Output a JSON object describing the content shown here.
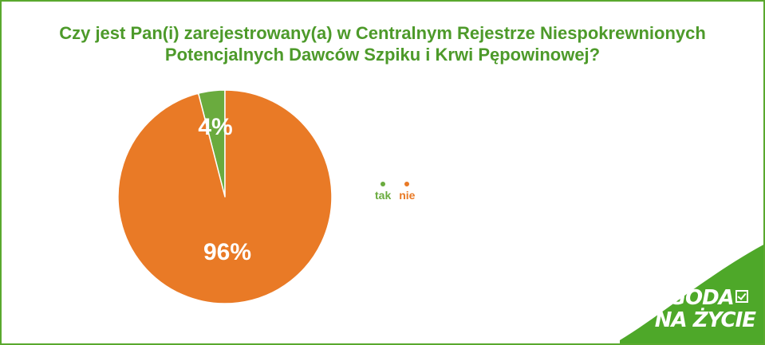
{
  "chart_data": {
    "type": "pie",
    "title": "Czy jest Pan(i) zarejestrowany(a) w Centralnym Rejestrze Niespokrewnionych Potencjalnych Dawców Szpiku i Krwi Pępowinowej?",
    "categories": [
      "tak",
      "nie"
    ],
    "values": [
      4,
      96
    ],
    "labels": [
      "4%",
      "96%"
    ],
    "colors": [
      "#6aab3e",
      "#e97a26"
    ],
    "legend_placement": "right",
    "start_angle": "top-clockwise"
  },
  "colors": {
    "title": "#4d9a2a",
    "frame": "#5aa92e",
    "logo_bg": "#4ea829",
    "slice_separator": "#ffffff"
  },
  "logo": {
    "line1": "ZGODA",
    "line2": "NA ŻYCIE"
  }
}
